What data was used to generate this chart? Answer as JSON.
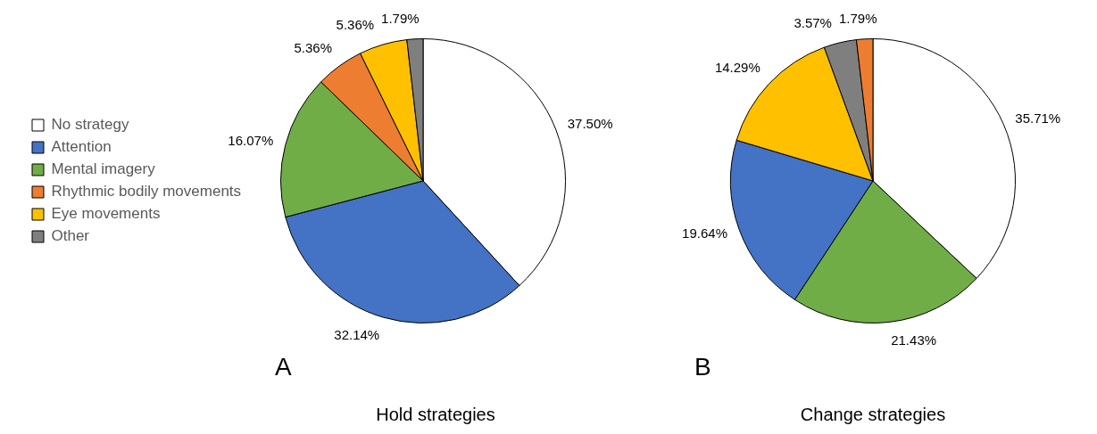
{
  "chart_data": [
    {
      "type": "pie",
      "title": "Hold strategies",
      "annotations": [
        "A"
      ],
      "legend": "left",
      "categories": [
        "No strategy",
        "Attention",
        "Mental imagery",
        "Rhythmic bodily movements",
        "Eye movements",
        "Other"
      ],
      "values": [
        37.5,
        32.14,
        16.07,
        5.36,
        5.36,
        1.79
      ],
      "value_labels": [
        "37.50%",
        "32.14%",
        "16.07%",
        "5.36%",
        "5.36%",
        "1.79%"
      ],
      "colors": [
        "#ffffff",
        "#4472c4",
        "#70ad47",
        "#ed7d31",
        "#ffc000",
        "#7f7f7f"
      ]
    },
    {
      "type": "pie",
      "title": "Change strategies",
      "annotations": [
        "B"
      ],
      "categories": [
        null,
        null,
        null,
        null,
        null,
        null
      ],
      "values": [
        35.71,
        21.43,
        19.64,
        14.29,
        3.57,
        1.79
      ],
      "value_labels": [
        "35.71%",
        "21.43%",
        "19.64%",
        "14.29%",
        "3.57%",
        "1.79%"
      ],
      "colors": [
        "#ffffff",
        "#70ad47",
        "#4472c4",
        "#ffc000",
        "#7f7f7f",
        "#ed7d31"
      ]
    }
  ]
}
